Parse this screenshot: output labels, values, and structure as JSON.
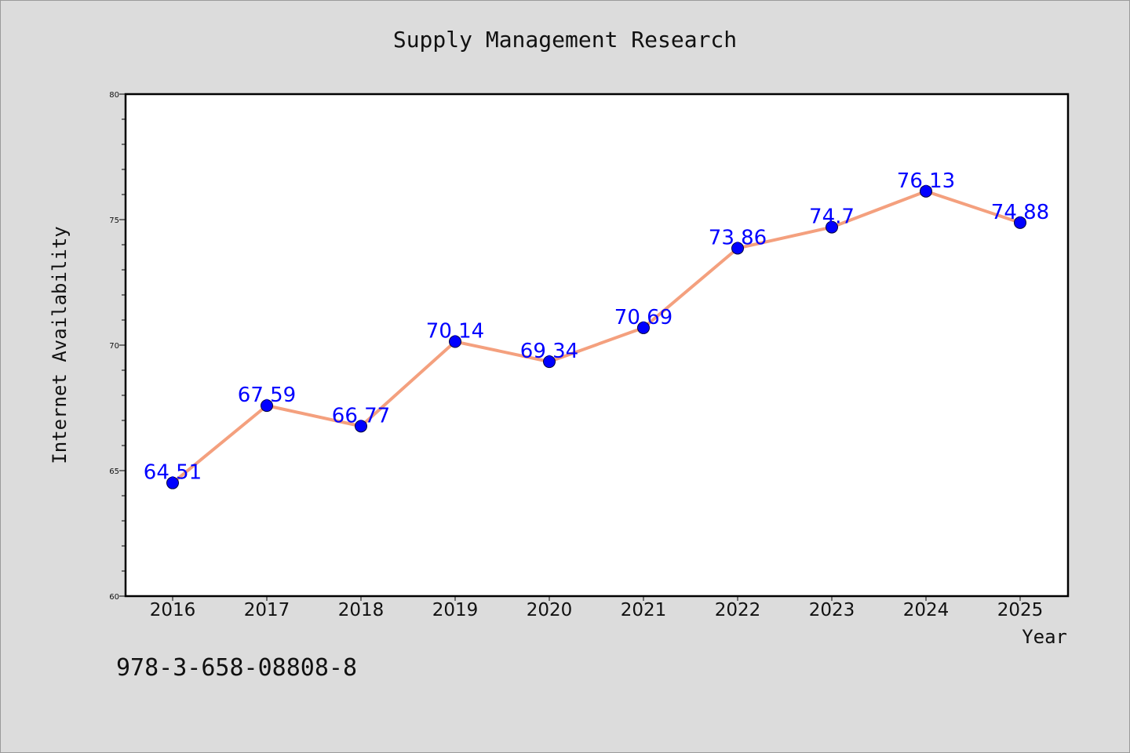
{
  "chart_data": {
    "type": "line",
    "title": "Supply Management Research",
    "xlabel": "Year",
    "ylabel": "Internet Availability",
    "categories": [
      "2016",
      "2017",
      "2018",
      "2019",
      "2020",
      "2021",
      "2022",
      "2023",
      "2024",
      "2025"
    ],
    "series": [
      {
        "values": [
          64.51,
          67.59,
          66.77,
          70.14,
          69.34,
          70.69,
          73.86,
          74.7,
          76.13,
          74.88
        ]
      }
    ],
    "data_labels": [
      "64.51",
      "67.59",
      "66.77",
      "70.14",
      "69.34",
      "70.69",
      "73.86",
      "74.7",
      "76.13",
      "74.88"
    ],
    "ylim": [
      60,
      80
    ],
    "yticks": [
      60,
      65,
      70,
      75,
      80
    ],
    "grid": false,
    "line_color": "#f4a07e",
    "marker_color": "#0000ff",
    "label_color": "#0000ff",
    "plot_background": "#ffffff",
    "figure_background": "#dcdcdc"
  },
  "footer": {
    "isbn": "978-3-658-08808-8"
  }
}
